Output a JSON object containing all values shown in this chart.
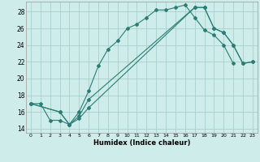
{
  "xlabel": "Humidex (Indice chaleur)",
  "background_color": "#ceecea",
  "grid_color": "#aacfcc",
  "line_color": "#2a7d75",
  "xlim": [
    -0.5,
    23.5
  ],
  "ylim": [
    13.5,
    29.2
  ],
  "xticks": [
    0,
    1,
    2,
    3,
    4,
    5,
    6,
    7,
    8,
    9,
    10,
    11,
    12,
    13,
    14,
    15,
    16,
    17,
    18,
    19,
    20,
    21,
    22,
    23
  ],
  "yticks": [
    14,
    16,
    18,
    20,
    22,
    24,
    26,
    28
  ],
  "line1_x": [
    0,
    1,
    2,
    3,
    4,
    5,
    6,
    7,
    8,
    9,
    10,
    11,
    12,
    13,
    14,
    15,
    16,
    17,
    18,
    19,
    20,
    21
  ],
  "line1_y": [
    17,
    17,
    15,
    15,
    14.5,
    16,
    18.5,
    21.5,
    23.5,
    24.5,
    26,
    26.5,
    27.3,
    28.2,
    28.2,
    28.5,
    28.8,
    27.3,
    25.8,
    25.2,
    24,
    21.8
  ],
  "line2_x": [
    0,
    3,
    4,
    5,
    6,
    17,
    18,
    19,
    20,
    21,
    22,
    23
  ],
  "line2_y": [
    17,
    16,
    14.5,
    15.5,
    17.5,
    28.5,
    28.5,
    26,
    25.5,
    24,
    21.8,
    22
  ],
  "line3_x": [
    0,
    3,
    4,
    5,
    6,
    17,
    18,
    19,
    20,
    21,
    22,
    23
  ],
  "line3_y": [
    17,
    16,
    14.5,
    15.2,
    16.5,
    28.5,
    28.5,
    26,
    25.5,
    24,
    21.8,
    22
  ]
}
